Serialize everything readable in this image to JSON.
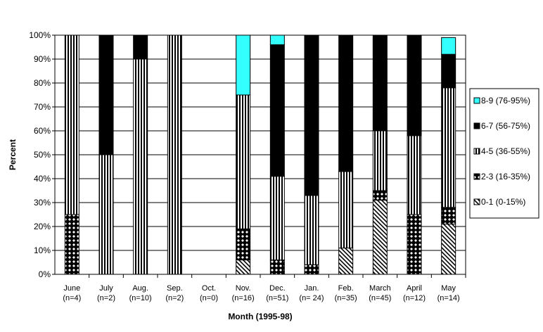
{
  "chart_data": {
    "type": "bar",
    "stacked": true,
    "percent_stacked": true,
    "xlabel": "Month (1995-98)",
    "ylabel": "Percent",
    "ylim": [
      0,
      100
    ],
    "y_ticks": [
      "0%",
      "10%",
      "20%",
      "30%",
      "40%",
      "50%",
      "60%",
      "70%",
      "80%",
      "90%",
      "100%"
    ],
    "grid": true,
    "legend_position": "right",
    "categories": [
      {
        "month": "June",
        "n": "(n=4)"
      },
      {
        "month": "July",
        "n": "(n=2)"
      },
      {
        "month": "Aug.",
        "n": "(n=10)"
      },
      {
        "month": "Sep.",
        "n": "(n=2)"
      },
      {
        "month": "Oct.",
        "n": "(n=0)"
      },
      {
        "month": "Nov.",
        "n": "(n=16)"
      },
      {
        "month": "Dec.",
        "n": "(n=51)"
      },
      {
        "month": "Jan.",
        "n": "(n= 24)"
      },
      {
        "month": "Feb.",
        "n": "(n=35)"
      },
      {
        "month": "March",
        "n": "(n=45)"
      },
      {
        "month": "April",
        "n": "(n=12)"
      },
      {
        "month": "May",
        "n": "(n=14)"
      }
    ],
    "series": [
      {
        "name": "0-1 (0-15%)",
        "pattern": "diagonal",
        "values": [
          0,
          0,
          0,
          0,
          0,
          6,
          0,
          0,
          11,
          31,
          0,
          21
        ]
      },
      {
        "name": "2-3 (16-35%)",
        "pattern": "checker",
        "values": [
          25,
          0,
          0,
          0,
          0,
          13,
          6,
          4,
          0,
          4,
          25,
          7
        ]
      },
      {
        "name": "4-5 (36-55%)",
        "pattern": "vertical",
        "values": [
          75,
          50,
          90,
          100,
          0,
          56,
          35,
          29,
          32,
          25,
          33,
          50
        ]
      },
      {
        "name": "6-7 (56-75%)",
        "pattern": "solid-black",
        "values": [
          0,
          50,
          10,
          0,
          0,
          0,
          55,
          67,
          57,
          40,
          42,
          14
        ]
      },
      {
        "name": "8-9 (76-95%)",
        "pattern": "solid-cyan",
        "values": [
          0,
          0,
          0,
          0,
          0,
          25,
          4,
          0,
          0,
          0,
          0,
          7
        ]
      }
    ],
    "legend_order": [
      4,
      3,
      2,
      1,
      0
    ]
  },
  "colors": {
    "cyan": "#33ffff",
    "black": "#000000",
    "gridline": "#000000",
    "background": "#ffffff"
  }
}
